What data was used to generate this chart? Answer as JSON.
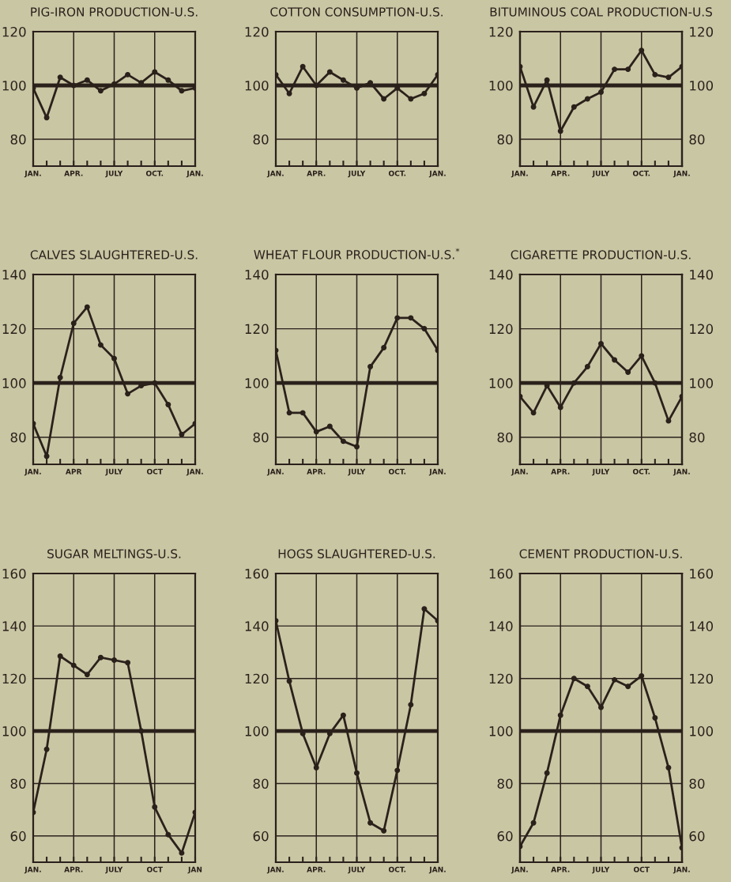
{
  "chart_data": [
    {
      "type": "line",
      "title": "PIG-IRON PRODUCTION-U.S.",
      "categories": [
        "JAN.",
        null,
        null,
        "APR.",
        null,
        null,
        "JULY",
        null,
        null,
        "OCT.",
        null,
        null,
        "JAN."
      ],
      "series": [
        {
          "color": "#2b211b",
          "values": [
            99,
            88,
            103,
            100,
            102,
            98,
            100.5,
            104,
            101,
            105,
            102,
            98,
            99
          ]
        }
      ],
      "ylim": [
        70,
        120
      ],
      "yticks": [
        80,
        100,
        120
      ],
      "ref_lines": [
        {
          "axis": "y",
          "value": 100
        }
      ],
      "grid": true,
      "marker": "circle"
    },
    {
      "type": "line",
      "title": "COTTON CONSUMPTION-U.S.",
      "categories": [
        "JAN.",
        null,
        null,
        "APR.",
        null,
        null,
        "JULY",
        null,
        null,
        "OCT.",
        null,
        null,
        "JAN."
      ],
      "series": [
        {
          "color": "#2b211b",
          "values": [
            104,
            97,
            107,
            100,
            105,
            102,
            99,
            101,
            95,
            99,
            95,
            97,
            104
          ]
        }
      ],
      "ylim": [
        70,
        120
      ],
      "yticks": [
        80,
        100,
        120
      ],
      "ref_lines": [
        {
          "axis": "y",
          "value": 100
        }
      ],
      "grid": true,
      "marker": "circle"
    },
    {
      "type": "line",
      "title": "BITUMINOUS COAL PRODUCTION-U.S",
      "categories": [
        "JAN.",
        null,
        null,
        "APR.",
        null,
        null,
        "JULY",
        null,
        null,
        "OCT.",
        null,
        null,
        "JAN."
      ],
      "series": [
        {
          "color": "#2b211b",
          "values": [
            107,
            92,
            102,
            83,
            92,
            95,
            97.5,
            106,
            106,
            113,
            104,
            103,
            107
          ]
        }
      ],
      "ylim": [
        70,
        120
      ],
      "yticks": [
        80,
        100,
        120
      ],
      "y2lim": [
        70,
        120
      ],
      "y2ticks": [
        80,
        100,
        120
      ],
      "ref_lines": [
        {
          "axis": "y",
          "value": 100
        }
      ],
      "grid": true,
      "marker": "circle"
    },
    {
      "type": "line",
      "title": "CALVES SLAUGHTERED-U.S.",
      "categories": [
        "JAN.",
        null,
        null,
        "APR",
        null,
        null,
        "JULY",
        null,
        null,
        "OCT",
        null,
        null,
        "JAN."
      ],
      "series": [
        {
          "color": "#2b211b",
          "values": [
            85,
            73,
            102,
            122,
            128,
            114,
            109,
            96,
            99,
            100,
            92,
            81,
            85
          ]
        }
      ],
      "ylim": [
        70,
        140
      ],
      "yticks": [
        80,
        100,
        120,
        140
      ],
      "ref_lines": [
        {
          "axis": "y",
          "value": 100
        }
      ],
      "grid": true,
      "marker": "circle"
    },
    {
      "type": "line",
      "title": "WHEAT FLOUR PRODUCTION-U.S.$^{*}$",
      "categories": [
        "JAN.",
        null,
        null,
        "APR.",
        null,
        null,
        "JULY",
        null,
        null,
        "OCT.",
        null,
        null,
        "JAN."
      ],
      "series": [
        {
          "color": "#2b211b",
          "values": [
            112,
            89,
            89,
            82,
            84,
            78.5,
            76.5,
            106,
            113,
            124,
            124,
            120,
            112
          ]
        }
      ],
      "ylim": [
        70,
        140
      ],
      "yticks": [
        80,
        100,
        120,
        140
      ],
      "ref_lines": [
        {
          "axis": "y",
          "value": 100
        }
      ],
      "grid": true,
      "marker": "circle"
    },
    {
      "type": "line",
      "title": "CIGARETTE PRODUCTION-U.S.",
      "categories": [
        "JAN.",
        null,
        null,
        "APR.",
        null,
        null,
        "JULY",
        null,
        null,
        "OCT.",
        null,
        null,
        "JAN."
      ],
      "series": [
        {
          "color": "#2b211b",
          "values": [
            95,
            89,
            99,
            91,
            100,
            106,
            114.5,
            108.5,
            104,
            110,
            100,
            86,
            95
          ]
        }
      ],
      "ylim": [
        70,
        140
      ],
      "yticks": [
        80,
        100,
        120,
        140
      ],
      "y2lim": [
        70,
        140
      ],
      "y2ticks": [
        80,
        100,
        120,
        140
      ],
      "ref_lines": [
        {
          "axis": "y",
          "value": 100
        }
      ],
      "grid": true,
      "marker": "circle"
    },
    {
      "type": "line",
      "title": "SUGAR MELTINGS-U.S.",
      "categories": [
        "JAN.",
        null,
        null,
        "APR.",
        null,
        null,
        "JULY",
        null,
        null,
        "OCT",
        null,
        null,
        "JAN"
      ],
      "series": [
        {
          "color": "#2b211b",
          "values": [
            69,
            93,
            128.5,
            125,
            121.5,
            128,
            127,
            126,
            100,
            71,
            60.5,
            53.5,
            69
          ]
        }
      ],
      "ylim": [
        50,
        160
      ],
      "yticks": [
        60,
        80,
        100,
        120,
        140,
        160
      ],
      "ref_lines": [
        {
          "axis": "y",
          "value": 100
        }
      ],
      "grid": true,
      "marker": "circle"
    },
    {
      "type": "line",
      "title": "HOGS SLAUGHTERED-U.S.",
      "categories": [
        "JAN.",
        null,
        null,
        "APR.",
        null,
        null,
        "JULY",
        null,
        null,
        "OCT.",
        null,
        null,
        "JAN."
      ],
      "series": [
        {
          "color": "#2b211b",
          "values": [
            142,
            119,
            99,
            86,
            99,
            106,
            84,
            65,
            62,
            85,
            110,
            146.5,
            142
          ]
        }
      ],
      "ylim": [
        50,
        160
      ],
      "yticks": [
        60,
        80,
        100,
        120,
        140,
        160
      ],
      "ref_lines": [
        {
          "axis": "y",
          "value": 100
        }
      ],
      "grid": true,
      "marker": "circle"
    },
    {
      "type": "line",
      "title": "CEMENT PRODUCTION-U.S.",
      "categories": [
        "JAN.",
        null,
        null,
        "APR.",
        null,
        null,
        "JULY",
        null,
        null,
        "OCT",
        null,
        null,
        "JAN."
      ],
      "series": [
        {
          "color": "#2b211b",
          "values": [
            56,
            65,
            84,
            106,
            120,
            117,
            109,
            119.5,
            117,
            121,
            105,
            86,
            55.5
          ]
        }
      ],
      "ylim": [
        50,
        160
      ],
      "yticks": [
        60,
        80,
        100,
        120,
        140,
        160
      ],
      "y2lim": [
        50,
        160
      ],
      "y2ticks": [
        60,
        80,
        100,
        120,
        140,
        160
      ],
      "ref_lines": [
        {
          "axis": "y",
          "value": 100
        }
      ],
      "grid": true,
      "marker": "circle"
    }
  ]
}
